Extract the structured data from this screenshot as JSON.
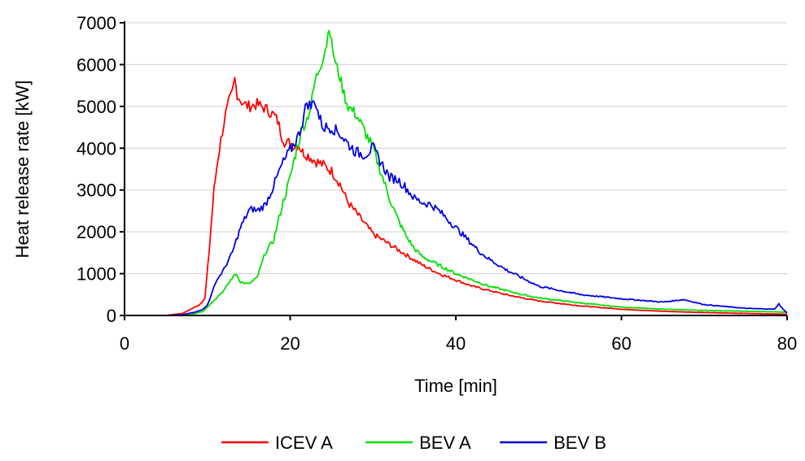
{
  "chart_data": {
    "type": "line",
    "title": "",
    "xlabel": "Time [min]",
    "ylabel": "Heat release rate [kW]",
    "xlim": [
      0,
      80
    ],
    "ylim": [
      0,
      7000
    ],
    "x_ticks": [
      0,
      20,
      40,
      60,
      80
    ],
    "y_ticks": [
      0,
      1000,
      2000,
      3000,
      4000,
      5000,
      6000,
      7000
    ],
    "grid": "horizontal",
    "legend_position": "bottom",
    "series": [
      {
        "name": "ICEV A",
        "color": "#ff0000",
        "x": [
          0,
          5,
          7,
          8,
          9,
          9.7,
          10.2,
          10.8,
          11.3,
          11.8,
          12.2,
          12.6,
          13.0,
          13.3,
          13.6,
          14,
          14.5,
          15,
          16,
          17,
          18,
          18.5,
          19,
          19.5,
          20,
          20.5,
          21,
          21.5,
          22,
          23,
          24,
          25,
          26,
          27,
          28,
          29,
          30,
          32,
          34,
          36,
          38,
          40,
          42,
          44,
          46,
          48,
          50,
          52,
          55,
          60,
          65,
          70,
          75,
          80
        ],
        "y": [
          0,
          0,
          50,
          150,
          250,
          400,
          1500,
          3000,
          3800,
          4400,
          4800,
          5100,
          5300,
          5650,
          5300,
          5150,
          5050,
          5000,
          5050,
          4950,
          4800,
          4650,
          4300,
          4100,
          4150,
          4050,
          4100,
          3900,
          3850,
          3700,
          3600,
          3450,
          3150,
          2700,
          2450,
          2200,
          1950,
          1700,
          1450,
          1200,
          1000,
          850,
          700,
          600,
          500,
          420,
          350,
          300,
          230,
          150,
          100,
          70,
          50,
          30
        ]
      },
      {
        "name": "BEV A",
        "color": "#00e000",
        "x": [
          0,
          6,
          8,
          9.5,
          10,
          11,
          12,
          13,
          13.5,
          14,
          15,
          16,
          16.5,
          17,
          18,
          19,
          20,
          20.8,
          21.5,
          22,
          22.5,
          23,
          23.5,
          24,
          24.4,
          24.7,
          25,
          25.5,
          26,
          26.5,
          27,
          28,
          29,
          30,
          31,
          32,
          33,
          34,
          35,
          36,
          38,
          40,
          42,
          44,
          46,
          48,
          50,
          55,
          60,
          65,
          70,
          75,
          80
        ],
        "y": [
          0,
          0,
          20,
          100,
          200,
          400,
          600,
          900,
          1000,
          800,
          750,
          900,
          1200,
          1500,
          1800,
          2600,
          3300,
          4000,
          4500,
          4700,
          5000,
          5600,
          5900,
          6200,
          6500,
          6950,
          6500,
          6000,
          5700,
          5300,
          5000,
          4800,
          4400,
          4000,
          3400,
          2800,
          2300,
          1900,
          1600,
          1400,
          1200,
          1000,
          850,
          700,
          600,
          500,
          420,
          300,
          200,
          150,
          120,
          100,
          80
        ]
      },
      {
        "name": "BEV B",
        "color": "#0000e0",
        "x": [
          0,
          5,
          7,
          8.5,
          9.5,
          10,
          10.5,
          11,
          12,
          13,
          14,
          15,
          15.5,
          16,
          17,
          18,
          19,
          20,
          21,
          21.5,
          22,
          22.5,
          23,
          23.5,
          24,
          25,
          26,
          27,
          28,
          29,
          30,
          31,
          32,
          33,
          34,
          35,
          36,
          37,
          38,
          39,
          40,
          41,
          42,
          43,
          44,
          46,
          48,
          50,
          55,
          60,
          65,
          67.5,
          70,
          75,
          78.5,
          79,
          79.5,
          80
        ],
        "y": [
          0,
          0,
          20,
          80,
          150,
          250,
          500,
          800,
          1100,
          1500,
          2100,
          2500,
          2550,
          2500,
          2650,
          3100,
          3600,
          3950,
          4300,
          4650,
          5100,
          5000,
          5150,
          4750,
          4500,
          4500,
          4350,
          4100,
          3900,
          3850,
          4000,
          3650,
          3300,
          3250,
          3050,
          2800,
          2700,
          2650,
          2500,
          2300,
          2100,
          1900,
          1700,
          1500,
          1350,
          1100,
          900,
          700,
          500,
          400,
          320,
          380,
          260,
          170,
          150,
          280,
          150,
          60
        ]
      }
    ]
  }
}
